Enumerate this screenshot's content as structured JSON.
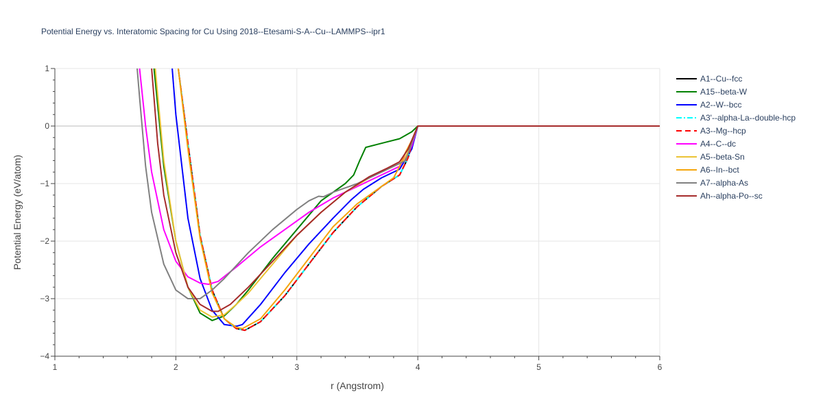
{
  "chart_data": {
    "type": "line",
    "title": "Potential Energy vs. Interatomic Spacing for Cu Using 2018--Etesami-S-A--Cu--LAMMPS--ipr1",
    "xlabel": "r (Angstrom)",
    "ylabel": "Potential Energy (eV/atom)",
    "xlim": [
      1,
      6
    ],
    "ylim": [
      -4,
      1
    ],
    "xticks": [
      1,
      2,
      3,
      4,
      5,
      6
    ],
    "xtick_labels": [
      "1",
      "2",
      "3",
      "4",
      "5",
      "6"
    ],
    "yticks": [
      1,
      0,
      -1,
      -2,
      -3,
      -4
    ],
    "ytick_labels": [
      "1",
      "0",
      "−1",
      "−2",
      "−3",
      "−4"
    ],
    "grid": true,
    "legend_position": "right",
    "series": [
      {
        "name": "A1--Cu--fcc",
        "color": "#000000",
        "dash": "solid",
        "x": [
          2.02,
          2.1,
          2.2,
          2.3,
          2.4,
          2.5,
          2.57,
          2.7,
          2.9,
          3.1,
          3.3,
          3.5,
          3.7,
          3.85,
          3.92,
          3.96,
          4.0,
          6.0
        ],
        "y": [
          1.0,
          -0.3,
          -1.9,
          -2.85,
          -3.35,
          -3.52,
          -3.55,
          -3.4,
          -2.95,
          -2.4,
          -1.85,
          -1.4,
          -1.05,
          -0.85,
          -0.55,
          -0.25,
          0.0,
          0.0
        ]
      },
      {
        "name": "A15--beta-W",
        "color": "#008000",
        "dash": "solid",
        "x": [
          1.82,
          1.9,
          2.0,
          2.1,
          2.2,
          2.3,
          2.4,
          2.5,
          2.6,
          2.8,
          3.0,
          3.2,
          3.4,
          3.47,
          3.52,
          3.57,
          3.7,
          3.85,
          3.95,
          4.0,
          6.0
        ],
        "y": [
          1.0,
          -0.7,
          -2.0,
          -2.8,
          -3.25,
          -3.38,
          -3.3,
          -3.1,
          -2.85,
          -2.3,
          -1.8,
          -1.3,
          -1.0,
          -0.85,
          -0.6,
          -0.37,
          -0.3,
          -0.22,
          -0.1,
          0.0,
          0.0
        ]
      },
      {
        "name": "A2--W--bcc",
        "color": "#0000ff",
        "dash": "solid",
        "x": [
          1.97,
          2.0,
          2.1,
          2.2,
          2.3,
          2.4,
          2.5,
          2.55,
          2.7,
          2.9,
          3.1,
          3.3,
          3.45,
          3.55,
          3.7,
          3.85,
          3.95,
          4.0,
          6.0
        ],
        "y": [
          1.0,
          0.2,
          -1.6,
          -2.65,
          -3.2,
          -3.45,
          -3.48,
          -3.45,
          -3.1,
          -2.55,
          -2.05,
          -1.6,
          -1.28,
          -1.1,
          -0.9,
          -0.75,
          -0.4,
          0.0,
          0.0
        ]
      },
      {
        "name": "A3'--alpha-La--double-hcp",
        "color": "#00ffff",
        "dash": "dashdot",
        "x": [
          2.02,
          2.1,
          2.2,
          2.3,
          2.4,
          2.5,
          2.57,
          2.7,
          2.9,
          3.1,
          3.3,
          3.5,
          3.7,
          3.85,
          3.92,
          3.96,
          4.0,
          6.0
        ],
        "y": [
          1.0,
          -0.3,
          -1.9,
          -2.85,
          -3.35,
          -3.52,
          -3.55,
          -3.4,
          -2.95,
          -2.4,
          -1.85,
          -1.4,
          -1.05,
          -0.85,
          -0.55,
          -0.25,
          0.0,
          0.0
        ]
      },
      {
        "name": "A3--Mg--hcp",
        "color": "#ff0000",
        "dash": "dash",
        "x": [
          2.02,
          2.1,
          2.2,
          2.3,
          2.4,
          2.5,
          2.57,
          2.7,
          2.9,
          3.1,
          3.3,
          3.5,
          3.7,
          3.85,
          3.92,
          3.96,
          4.0,
          6.0
        ],
        "y": [
          1.0,
          -0.3,
          -1.9,
          -2.85,
          -3.35,
          -3.52,
          -3.55,
          -3.4,
          -2.95,
          -2.4,
          -1.85,
          -1.4,
          -1.05,
          -0.85,
          -0.55,
          -0.25,
          0.0,
          0.0
        ]
      },
      {
        "name": "A4--C--dc",
        "color": "#ff00ff",
        "dash": "solid",
        "x": [
          1.7,
          1.75,
          1.8,
          1.9,
          2.0,
          2.1,
          2.2,
          2.27,
          2.35,
          2.5,
          2.7,
          2.9,
          3.1,
          3.3,
          3.5,
          3.7,
          3.85,
          3.95,
          4.0,
          6.0
        ],
        "y": [
          1.0,
          0.0,
          -0.8,
          -1.8,
          -2.35,
          -2.62,
          -2.73,
          -2.75,
          -2.7,
          -2.45,
          -2.1,
          -1.8,
          -1.5,
          -1.25,
          -1.05,
          -0.85,
          -0.7,
          -0.35,
          0.0,
          0.0
        ]
      },
      {
        "name": "A5--beta-Sn",
        "color": "#ebc334",
        "dash": "solid",
        "x": [
          1.83,
          1.9,
          2.0,
          2.1,
          2.2,
          2.3,
          2.4,
          2.5,
          2.6,
          2.8,
          3.0,
          3.2,
          3.4,
          3.6,
          3.8,
          3.88,
          3.94,
          4.0,
          6.0
        ],
        "y": [
          1.0,
          -0.6,
          -2.0,
          -2.8,
          -3.2,
          -3.32,
          -3.28,
          -3.1,
          -2.9,
          -2.4,
          -1.9,
          -1.5,
          -1.15,
          -0.9,
          -0.7,
          -0.62,
          -0.35,
          0.0,
          0.0
        ]
      },
      {
        "name": "A6--In--bct",
        "color": "#f5a50a",
        "dash": "solid",
        "x": [
          2.02,
          2.1,
          2.2,
          2.3,
          2.4,
          2.5,
          2.55,
          2.7,
          2.9,
          3.1,
          3.3,
          3.5,
          3.7,
          3.8,
          3.85,
          3.9,
          3.95,
          4.0,
          6.0
        ],
        "y": [
          1.0,
          -0.4,
          -1.95,
          -2.9,
          -3.35,
          -3.5,
          -3.52,
          -3.35,
          -2.85,
          -2.3,
          -1.75,
          -1.35,
          -1.05,
          -0.9,
          -0.7,
          -0.45,
          -0.25,
          0.0,
          0.0
        ]
      },
      {
        "name": "A7--alpha-As",
        "color": "#808080",
        "dash": "solid",
        "x": [
          1.68,
          1.7,
          1.75,
          1.8,
          1.9,
          2.0,
          2.1,
          2.2,
          2.3,
          2.4,
          2.6,
          2.8,
          3.0,
          3.1,
          3.18,
          3.22,
          3.3,
          3.5,
          3.7,
          3.9,
          4.0,
          6.0
        ],
        "y": [
          1.0,
          0.5,
          -0.7,
          -1.5,
          -2.4,
          -2.85,
          -3.0,
          -3.0,
          -2.85,
          -2.65,
          -2.2,
          -1.8,
          -1.45,
          -1.3,
          -1.22,
          -1.23,
          -1.15,
          -1.0,
          -0.8,
          -0.6,
          0.0,
          0.0
        ]
      },
      {
        "name": "Ah--alpha-Po--sc",
        "color": "#a52a2a",
        "dash": "solid",
        "x": [
          1.8,
          1.85,
          1.9,
          2.0,
          2.1,
          2.2,
          2.3,
          2.35,
          2.45,
          2.6,
          2.8,
          3.0,
          3.2,
          3.4,
          3.6,
          3.75,
          3.85,
          3.92,
          3.96,
          4.0,
          6.0
        ],
        "y": [
          1.0,
          -0.3,
          -1.2,
          -2.2,
          -2.8,
          -3.1,
          -3.22,
          -3.22,
          -3.1,
          -2.8,
          -2.35,
          -1.9,
          -1.5,
          -1.15,
          -0.88,
          -0.73,
          -0.62,
          -0.4,
          -0.2,
          0.0,
          0.0
        ]
      }
    ]
  }
}
